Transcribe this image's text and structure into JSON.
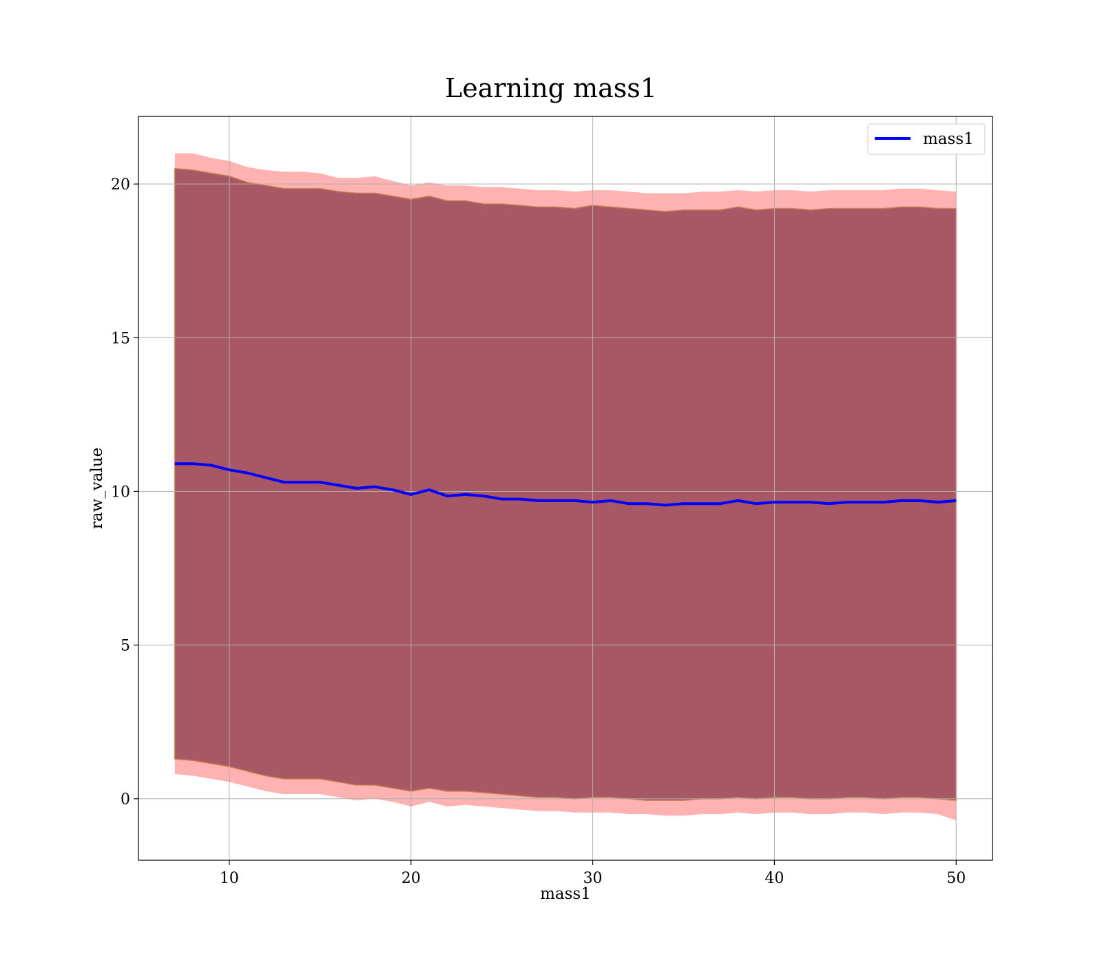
{
  "chart_data": {
    "type": "line",
    "title": "Learning mass1",
    "xlabel": "mass1",
    "ylabel": "raw_value",
    "xlim": [
      5,
      52
    ],
    "ylim": [
      -2,
      22.2
    ],
    "xticks": [
      "10",
      "20",
      "30",
      "40",
      "50"
    ],
    "yticks": [
      "0",
      "5",
      "10",
      "15",
      "20"
    ],
    "grid": true,
    "legend_position": "top-right",
    "colors": {
      "line": "#0000ff",
      "outer_band": "#ff0000",
      "inner_band": "#8b3a4a",
      "inner_band_edge": "#c07040",
      "grid": "#b0b0b0"
    },
    "x": [
      7,
      8,
      9,
      10,
      11,
      12,
      13,
      14,
      15,
      16,
      17,
      18,
      19,
      20,
      21,
      22,
      23,
      24,
      25,
      26,
      27,
      28,
      29,
      30,
      31,
      32,
      33,
      34,
      35,
      36,
      37,
      38,
      39,
      40,
      41,
      42,
      43,
      44,
      45,
      46,
      47,
      48,
      49,
      50
    ],
    "series": [
      {
        "name": "mass1",
        "role": "line",
        "values": [
          10.9,
          10.9,
          10.85,
          10.7,
          10.6,
          10.45,
          10.3,
          10.3,
          10.3,
          10.2,
          10.1,
          10.15,
          10.05,
          9.9,
          10.05,
          9.85,
          9.9,
          9.85,
          9.75,
          9.75,
          9.7,
          9.7,
          9.7,
          9.65,
          9.7,
          9.6,
          9.6,
          9.55,
          9.6,
          9.6,
          9.6,
          9.7,
          9.6,
          9.65,
          9.65,
          9.65,
          9.6,
          9.65,
          9.65,
          9.65,
          9.7,
          9.7,
          9.65,
          9.7
        ]
      },
      {
        "role": "outer_band",
        "upper": [
          21.0,
          21.0,
          20.85,
          20.75,
          20.55,
          20.45,
          20.4,
          20.4,
          20.35,
          20.2,
          20.2,
          20.25,
          20.1,
          19.95,
          20.05,
          19.95,
          19.95,
          19.9,
          19.9,
          19.85,
          19.8,
          19.8,
          19.75,
          19.8,
          19.8,
          19.75,
          19.7,
          19.7,
          19.7,
          19.75,
          19.75,
          19.8,
          19.75,
          19.8,
          19.8,
          19.75,
          19.8,
          19.8,
          19.8,
          19.8,
          19.85,
          19.85,
          19.8,
          19.75
        ],
        "lower": [
          0.8,
          0.75,
          0.65,
          0.55,
          0.4,
          0.25,
          0.15,
          0.15,
          0.15,
          0.05,
          -0.05,
          0.0,
          -0.1,
          -0.25,
          -0.1,
          -0.25,
          -0.2,
          -0.25,
          -0.3,
          -0.35,
          -0.4,
          -0.4,
          -0.45,
          -0.45,
          -0.45,
          -0.5,
          -0.5,
          -0.55,
          -0.55,
          -0.5,
          -0.5,
          -0.45,
          -0.5,
          -0.45,
          -0.45,
          -0.5,
          -0.5,
          -0.45,
          -0.45,
          -0.5,
          -0.45,
          -0.45,
          -0.5,
          -0.7
        ]
      },
      {
        "role": "inner_band",
        "upper": [
          20.5,
          20.45,
          20.35,
          20.25,
          20.05,
          19.95,
          19.85,
          19.85,
          19.85,
          19.75,
          19.7,
          19.7,
          19.6,
          19.5,
          19.6,
          19.45,
          19.45,
          19.35,
          19.35,
          19.3,
          19.25,
          19.25,
          19.2,
          19.3,
          19.25,
          19.2,
          19.15,
          19.1,
          19.15,
          19.15,
          19.15,
          19.25,
          19.15,
          19.2,
          19.2,
          19.15,
          19.2,
          19.2,
          19.2,
          19.2,
          19.25,
          19.25,
          19.2,
          19.2
        ],
        "lower": [
          1.3,
          1.25,
          1.15,
          1.05,
          0.9,
          0.75,
          0.65,
          0.65,
          0.65,
          0.55,
          0.45,
          0.45,
          0.35,
          0.25,
          0.35,
          0.25,
          0.25,
          0.2,
          0.15,
          0.1,
          0.05,
          0.05,
          0.0,
          0.05,
          0.05,
          0.0,
          -0.05,
          -0.05,
          -0.05,
          0.0,
          0.0,
          0.05,
          0.0,
          0.05,
          0.05,
          0.0,
          0.0,
          0.05,
          0.05,
          0.0,
          0.05,
          0.05,
          0.0,
          -0.05
        ]
      }
    ]
  }
}
